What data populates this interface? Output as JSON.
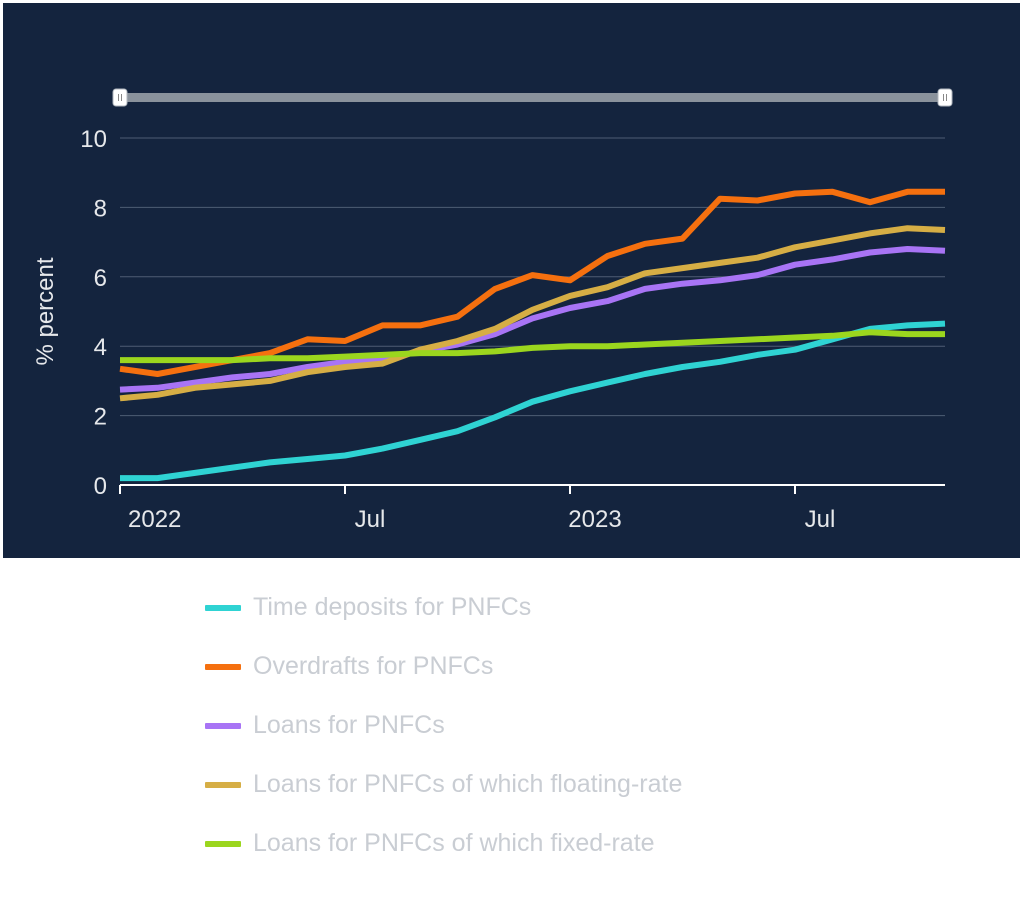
{
  "chart_data": {
    "type": "line",
    "xlabel": "",
    "ylabel": "% percent",
    "ylim": [
      0,
      10
    ],
    "yticks": [
      0,
      2,
      4,
      6,
      8,
      10
    ],
    "xticks": [
      {
        "label": "2022",
        "date": "2022-01"
      },
      {
        "label": "Jul",
        "date": "2022-07"
      },
      {
        "label": "2023",
        "date": "2023-01"
      },
      {
        "label": "Jul",
        "date": "2023-07"
      }
    ],
    "x": [
      "2022-01",
      "2022-02",
      "2022-03",
      "2022-04",
      "2022-05",
      "2022-06",
      "2022-07",
      "2022-08",
      "2022-09",
      "2022-10",
      "2022-11",
      "2022-12",
      "2023-01",
      "2023-02",
      "2023-03",
      "2023-04",
      "2023-05",
      "2023-06",
      "2023-07",
      "2023-08",
      "2023-09",
      "2023-10",
      "2023-11"
    ],
    "grid": true,
    "legend_position": "bottom",
    "range_slider": true,
    "series": [
      {
        "name": "Time deposits for PNFCs",
        "color": "#2fd3d3",
        "values": [
          0.2,
          0.2,
          0.35,
          0.5,
          0.65,
          0.75,
          0.85,
          1.05,
          1.3,
          1.55,
          1.95,
          2.4,
          2.7,
          2.95,
          3.2,
          3.4,
          3.55,
          3.75,
          3.9,
          4.2,
          4.5,
          4.6,
          4.65
        ]
      },
      {
        "name": "Overdrafts for PNFCs",
        "color": "#f5700f",
        "values": [
          3.35,
          3.2,
          3.4,
          3.6,
          3.8,
          4.2,
          4.15,
          4.6,
          4.6,
          4.85,
          5.65,
          6.05,
          5.9,
          6.6,
          6.95,
          7.1,
          8.25,
          8.2,
          8.4,
          8.45,
          8.15,
          8.45,
          8.45
        ]
      },
      {
        "name": "Loans for PNFCs",
        "color": "#a874f5",
        "values": [
          2.75,
          2.8,
          2.95,
          3.1,
          3.2,
          3.4,
          3.55,
          3.65,
          3.85,
          4.05,
          4.35,
          4.8,
          5.1,
          5.3,
          5.65,
          5.8,
          5.9,
          6.05,
          6.35,
          6.5,
          6.7,
          6.8,
          6.75
        ]
      },
      {
        "name": "Loans for PNFCs of which floating-rate",
        "color": "#d6ae45",
        "values": [
          2.5,
          2.6,
          2.8,
          2.9,
          3.0,
          3.25,
          3.4,
          3.5,
          3.9,
          4.15,
          4.5,
          5.05,
          5.45,
          5.7,
          6.1,
          6.25,
          6.4,
          6.55,
          6.85,
          7.05,
          7.25,
          7.4,
          7.35
        ]
      },
      {
        "name": "Loans for PNFCs of which fixed-rate",
        "color": "#9bd61e",
        "values": [
          3.6,
          3.6,
          3.6,
          3.6,
          3.65,
          3.65,
          3.7,
          3.75,
          3.8,
          3.8,
          3.85,
          3.95,
          4.0,
          4.0,
          4.05,
          4.1,
          4.15,
          4.2,
          4.25,
          4.3,
          4.4,
          4.35,
          4.35
        ]
      }
    ]
  }
}
